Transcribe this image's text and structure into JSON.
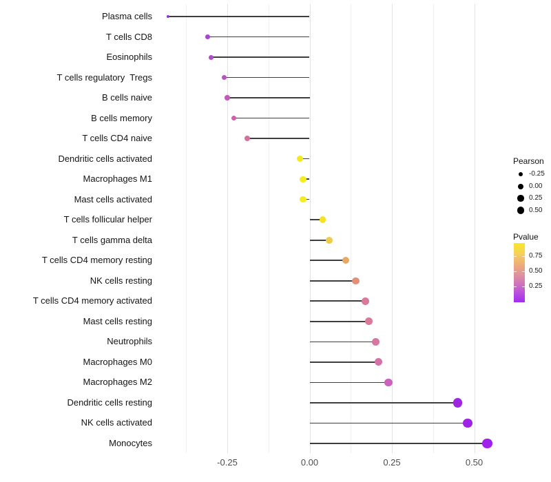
{
  "figure": {
    "background": "#ffffff"
  },
  "legend_pearson": {
    "title": "Pearson",
    "dot_color": "#000000",
    "items": [
      {
        "label": "-0.25",
        "r": 3.2
      },
      {
        "label": "0.00",
        "r": 4.0
      },
      {
        "label": "0.25",
        "r": 4.7
      },
      {
        "label": "0.50",
        "r": 5.4
      }
    ]
  },
  "legend_pvalue": {
    "title": "Pvalue",
    "ticks": [
      {
        "label": "0.75",
        "pos": 0.22
      },
      {
        "label": "0.50",
        "pos": 0.477
      },
      {
        "label": "0.25",
        "pos": 0.733
      }
    ],
    "gradient_stops": [
      {
        "at": 0.0,
        "color": "#fbe723"
      },
      {
        "at": 0.18,
        "color": "#f5d05c"
      },
      {
        "at": 0.38,
        "color": "#edaa7c"
      },
      {
        "at": 0.55,
        "color": "#df8f9f"
      },
      {
        "at": 0.72,
        "color": "#cd6cc3"
      },
      {
        "at": 0.87,
        "color": "#b648e2"
      },
      {
        "at": 1.0,
        "color": "#a52bee"
      }
    ]
  },
  "chart_data": {
    "type": "scatter",
    "variant": "lollipop",
    "orientation": "horizontal",
    "title": "",
    "xlabel": "",
    "ylabel": "",
    "size_encoding": "Pearson",
    "color_encoding": "Pvalue",
    "x_axis": {
      "tick_labels": [
        "-0.25",
        "0.00",
        "0.25",
        "0.50"
      ],
      "tick_values": [
        -0.25,
        0,
        0.25,
        0.5
      ],
      "minor_step": 0.125,
      "range": [
        -0.475,
        0.565
      ],
      "grid": "vertical-only"
    },
    "points": [
      {
        "label": "Plasma cells",
        "pearson": -0.43,
        "color": "#9232d8",
        "r": 2.2
      },
      {
        "label": "T cells CD8",
        "pearson": -0.31,
        "color": "#a946d0",
        "r": 3.4
      },
      {
        "label": "Eosinophils",
        "pearson": -0.3,
        "color": "#b04cca",
        "r": 3.5
      },
      {
        "label": "T cells regulatory  Tregs",
        "pearson": -0.26,
        "color": "#bb52c2",
        "r": 3.7
      },
      {
        "label": "B cells naive",
        "pearson": -0.25,
        "color": "#c45ab8",
        "r": 3.8
      },
      {
        "label": "B cells memory",
        "pearson": -0.23,
        "color": "#ca62ac",
        "r": 3.9
      },
      {
        "label": "T cells CD4 naive",
        "pearson": -0.19,
        "color": "#d2719c",
        "r": 4.1
      },
      {
        "label": "Dendritic cells activated",
        "pearson": -0.03,
        "color": "#f3ea1e",
        "r": 4.6
      },
      {
        "label": "Macrophages M1",
        "pearson": -0.02,
        "color": "#f6ed1c",
        "r": 4.6
      },
      {
        "label": "Mast cells activated",
        "pearson": -0.02,
        "color": "#f6ed1c",
        "r": 4.6
      },
      {
        "label": "T cells follicular helper",
        "pearson": 0.04,
        "color": "#f3e324",
        "r": 4.8
      },
      {
        "label": "T cells gamma delta",
        "pearson": 0.06,
        "color": "#eece49",
        "r": 4.9
      },
      {
        "label": "T cells CD4 memory resting",
        "pearson": 0.11,
        "color": "#eaa763",
        "r": 5.1
      },
      {
        "label": "NK cells resting",
        "pearson": 0.14,
        "color": "#e38f78",
        "r": 5.2
      },
      {
        "label": "T cells CD4 memory activated",
        "pearson": 0.17,
        "color": "#d87a99",
        "r": 5.4
      },
      {
        "label": "Mast cells resting",
        "pearson": 0.18,
        "color": "#d87a99",
        "r": 5.4
      },
      {
        "label": "Neutrophils",
        "pearson": 0.2,
        "color": "#d776a1",
        "r": 5.5
      },
      {
        "label": "Macrophages M0",
        "pearson": 0.21,
        "color": "#d572a8",
        "r": 5.6
      },
      {
        "label": "Macrophages M2",
        "pearson": 0.24,
        "color": "#cb63bd",
        "r": 5.8
      },
      {
        "label": "Dendritic cells resting",
        "pearson": 0.45,
        "color": "#9d27e0",
        "r": 6.8
      },
      {
        "label": "NK cells activated",
        "pearson": 0.48,
        "color": "#9c23e6",
        "r": 6.9
      },
      {
        "label": "Monocytes",
        "pearson": 0.54,
        "color": "#a021ee",
        "r": 7.2
      }
    ]
  }
}
